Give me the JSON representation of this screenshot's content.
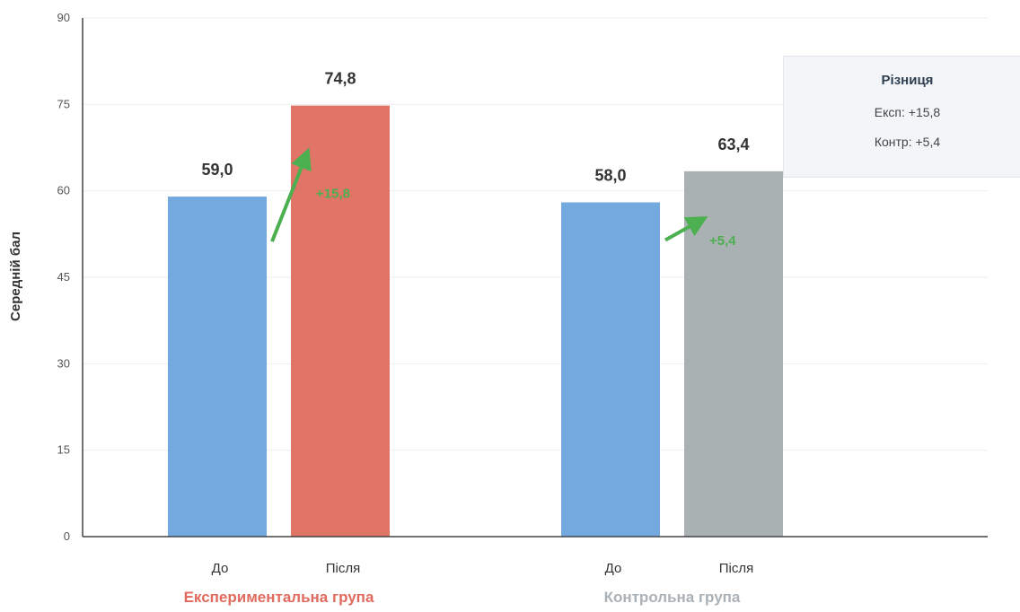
{
  "chart_data": {
    "type": "bar",
    "ylabel": "Середній бал",
    "ylim": [
      0,
      90
    ],
    "yticks": [
      0,
      15,
      30,
      45,
      60,
      75,
      90
    ],
    "yticks_labels": [
      "0",
      "15",
      "30",
      "45",
      "60",
      "75",
      "90"
    ],
    "grid": true,
    "groups": [
      {
        "name": "Експериментальна група",
        "name_color": "#e06a5e",
        "bars": [
          {
            "category": "До",
            "value": 59.0,
            "label": "59,0",
            "color": "#74a9e0"
          },
          {
            "category": "Після",
            "value": 74.8,
            "label": "74,8",
            "color": "#e07466"
          }
        ],
        "difference": {
          "value": 15.8,
          "label": "+15,8",
          "color": "#4caf50"
        }
      },
      {
        "name": "Контрольна група",
        "name_color": "#aab1b7",
        "bars": [
          {
            "category": "До",
            "value": 58.0,
            "label": "58,0",
            "color": "#74a9e0"
          },
          {
            "category": "Після",
            "value": 63.4,
            "label": "63,4",
            "color": "#a9b1b3"
          }
        ],
        "difference": {
          "value": 5.4,
          "label": "+5,4",
          "color": "#4caf50"
        }
      }
    ]
  },
  "summary": {
    "title": "Різниця",
    "exp_line": "Експ: +15,8",
    "control_line": "Контр: +5,4"
  },
  "colors": {
    "axis": "#444444",
    "grid": "#eeeeee",
    "arrow": "#4caf50"
  }
}
